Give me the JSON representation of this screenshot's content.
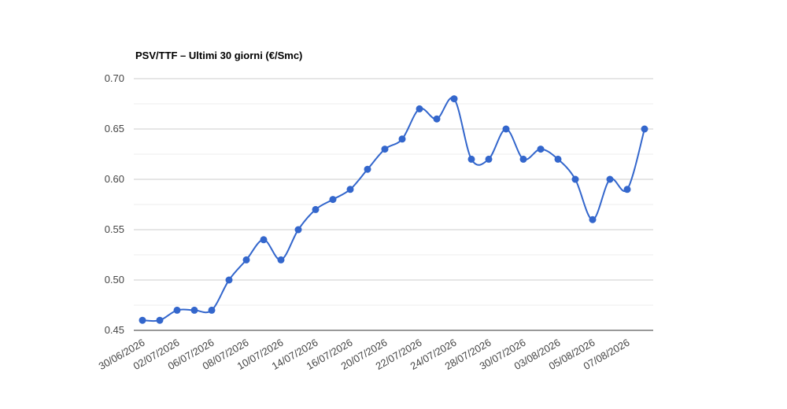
{
  "chart_data": {
    "type": "line",
    "title": "PSV/TTF – Ultimi 30 giorni (€/Smc)",
    "categories": [
      "30/06/2026",
      null,
      "02/07/2026",
      null,
      "06/07/2026",
      null,
      "08/07/2026",
      null,
      "10/07/2026",
      null,
      "14/07/2026",
      null,
      "16/07/2026",
      null,
      "20/07/2026",
      null,
      "22/07/2026",
      null,
      "24/07/2026",
      null,
      "28/07/2026",
      null,
      "30/07/2026",
      null,
      "03/08/2026",
      null,
      "05/08/2026",
      null,
      "07/08/2026",
      null
    ],
    "series": [
      {
        "name": "PSV/TTF",
        "color": "#3366cc",
        "values": [
          0.46,
          0.46,
          0.47,
          0.47,
          0.47,
          0.5,
          0.52,
          0.54,
          0.52,
          0.55,
          0.57,
          0.58,
          0.59,
          0.61,
          0.63,
          0.64,
          0.67,
          0.66,
          0.68,
          0.62,
          0.62,
          0.65,
          0.62,
          0.63,
          0.62,
          0.6,
          0.56,
          0.6,
          0.59,
          0.65
        ]
      }
    ],
    "ylim": [
      0.45,
      0.7
    ],
    "yticks": [
      0.45,
      {
        "value": 0.5,
        "label": "0.50"
      },
      0.55,
      {
        "value": 0.6,
        "label": "0.60"
      },
      0.65,
      {
        "value": 0.7,
        "label": "0.70"
      }
    ],
    "grid": true
  }
}
